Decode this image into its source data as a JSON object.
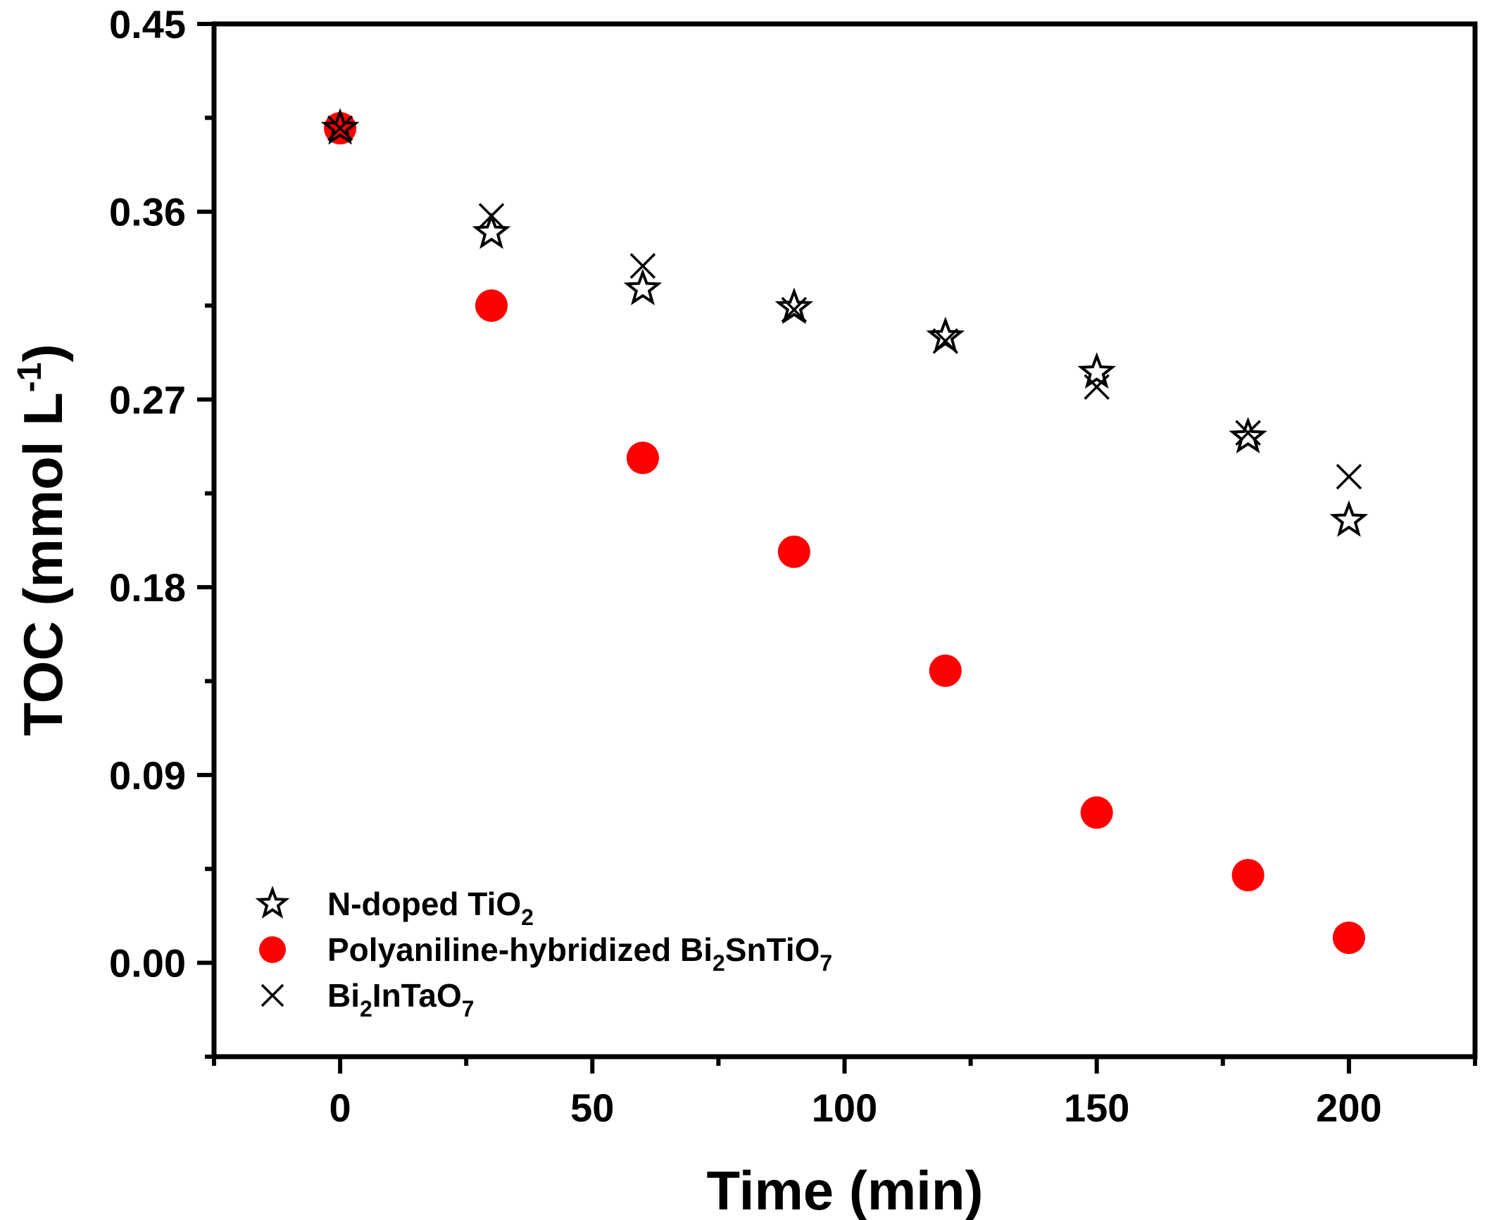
{
  "chart_data": {
    "type": "scatter",
    "title": "",
    "xlabel": "Time (min)",
    "ylabel": {
      "main": "TOC (mmol L",
      "superscript": "-1",
      "suffix": ")"
    },
    "xlim": [
      -25,
      225
    ],
    "ylim": [
      -0.045,
      0.45
    ],
    "x_ticks": [
      0,
      50,
      100,
      150,
      200
    ],
    "x_tick_labels": [
      "0",
      "50",
      "100",
      "150",
      "200"
    ],
    "x_minor_ticks": [
      -25,
      25,
      75,
      125,
      175,
      225
    ],
    "y_ticks": [
      0.0,
      0.09,
      0.18,
      0.27,
      0.36,
      0.45
    ],
    "y_tick_labels": [
      "0.00",
      "0.09",
      "0.18",
      "0.27",
      "0.36",
      "0.45"
    ],
    "y_minor_ticks": [
      -0.045,
      0.045,
      0.135,
      0.225,
      0.315,
      0.405
    ],
    "grid": false,
    "legend_position": "bottom-left",
    "series": [
      {
        "name": "N-doped TiO2",
        "label_parts": [
          {
            "text": "N-doped TiO"
          },
          {
            "text": "2",
            "sub": true
          }
        ],
        "marker": "star-open",
        "color": "#000000",
        "x": [
          0,
          30,
          60,
          90,
          120,
          150,
          180,
          200
        ],
        "y": [
          0.4,
          0.35,
          0.323,
          0.314,
          0.3,
          0.283,
          0.252,
          0.212
        ]
      },
      {
        "name": "Polyaniline-hybridized Bi2SnTiO7",
        "label_parts": [
          {
            "text": "Polyaniline-hybridized Bi"
          },
          {
            "text": "2",
            "sub": true
          },
          {
            "text": "SnTiO"
          },
          {
            "text": "7",
            "sub": true
          }
        ],
        "marker": "circle-filled",
        "color": "#ff0000",
        "x": [
          0,
          30,
          60,
          90,
          120,
          150,
          180,
          200
        ],
        "y": [
          0.4,
          0.315,
          0.242,
          0.197,
          0.14,
          0.072,
          0.042,
          0.012
        ]
      },
      {
        "name": "Bi2InTaO7",
        "label_parts": [
          {
            "text": "Bi"
          },
          {
            "text": "2",
            "sub": true
          },
          {
            "text": "InTaO"
          },
          {
            "text": "7",
            "sub": true
          }
        ],
        "marker": "x",
        "color": "#000000",
        "x": [
          0,
          30,
          60,
          90,
          120,
          150,
          180,
          200
        ],
        "y": [
          0.4,
          0.358,
          0.334,
          0.313,
          0.298,
          0.276,
          0.254,
          0.233
        ]
      }
    ]
  }
}
